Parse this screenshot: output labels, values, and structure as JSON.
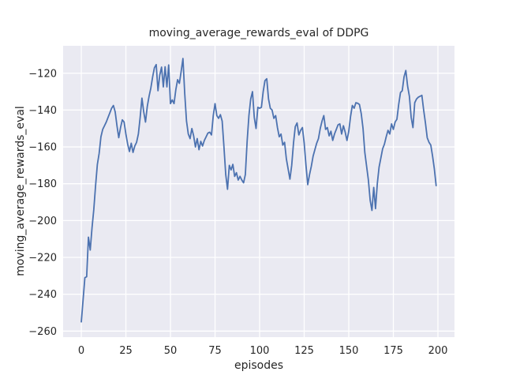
{
  "colors": {
    "figure_background": "#ffffff",
    "axes_background": "#eaeaf2",
    "grid": "#ffffff",
    "line": "#4c72b0",
    "text": "#262626"
  },
  "chart_data": {
    "type": "line",
    "title": "moving_average_rewards_eval of DDPG",
    "xlabel": "episodes",
    "ylabel": "moving_average_rewards_eval",
    "legend": null,
    "grid": true,
    "x_ticks": [
      0,
      25,
      50,
      75,
      100,
      125,
      150,
      175,
      200
    ],
    "y_ticks": [
      -120,
      -140,
      -160,
      -180,
      -200,
      -220,
      -240,
      -260
    ],
    "xlim": [
      -10.2,
      209.3
    ],
    "ylim": [
      -263.3,
      -105.1
    ],
    "x_note": "x value = episode index 0..199",
    "series": [
      {
        "name": "moving_average_rewards_eval",
        "values": [
          -255,
          -243,
          -231,
          -230.5,
          -209,
          -216,
          -204,
          -194,
          -181,
          -169.5,
          -163.5,
          -154.5,
          -150.5,
          -148.5,
          -146.5,
          -144,
          -141.5,
          -139,
          -137.5,
          -141,
          -148.5,
          -155,
          -149.5,
          -145.3,
          -146.5,
          -153,
          -158.5,
          -162.5,
          -158,
          -163,
          -159.5,
          -157.5,
          -153,
          -144,
          -133.5,
          -141,
          -146.5,
          -138,
          -132.5,
          -128,
          -122,
          -117,
          -115.3,
          -129.5,
          -121,
          -116.7,
          -127.4,
          -116.5,
          -127.4,
          -115.5,
          -136.5,
          -134.5,
          -136.5,
          -129,
          -123.5,
          -125.5,
          -119,
          -112,
          -131,
          -146,
          -153,
          -155.5,
          -150,
          -154,
          -160,
          -155.5,
          -161.5,
          -157,
          -159.5,
          -156.5,
          -154.5,
          -152.5,
          -152,
          -153.5,
          -143,
          -136.5,
          -143,
          -144.5,
          -142.5,
          -146,
          -160,
          -175,
          -183,
          -170,
          -172.5,
          -169.5,
          -176,
          -174,
          -178,
          -176,
          -178,
          -179.5,
          -175,
          -157,
          -143,
          -134,
          -130,
          -144,
          -150,
          -138.5,
          -139,
          -138.5,
          -130,
          -124,
          -123,
          -134,
          -139,
          -140,
          -144.5,
          -143,
          -149.5,
          -154.5,
          -153,
          -159,
          -157.5,
          -166.5,
          -172,
          -177.5,
          -170,
          -158,
          -149,
          -147,
          -153.5,
          -151,
          -149.5,
          -158,
          -170,
          -180.5,
          -175,
          -170.5,
          -165,
          -161.5,
          -158,
          -155.5,
          -150,
          -146,
          -143,
          -150.5,
          -149.5,
          -154,
          -151.5,
          -156.5,
          -153,
          -150.5,
          -148,
          -147.5,
          -153,
          -148.5,
          -152,
          -156.5,
          -151.5,
          -143.5,
          -137.5,
          -139,
          -136,
          -136.3,
          -137,
          -142,
          -150,
          -163,
          -170.5,
          -178,
          -189,
          -194.5,
          -182,
          -193.5,
          -180,
          -171,
          -166,
          -161,
          -158.5,
          -154.5,
          -151,
          -153,
          -147.5,
          -150.5,
          -146.5,
          -145,
          -137,
          -130.5,
          -129.5,
          -122,
          -118.5,
          -127,
          -132.5,
          -144,
          -149.5,
          -136,
          -134,
          -133,
          -132.5,
          -132,
          -140,
          -147,
          -155,
          -157.5,
          -159,
          -165,
          -172,
          -181
        ]
      }
    ]
  }
}
